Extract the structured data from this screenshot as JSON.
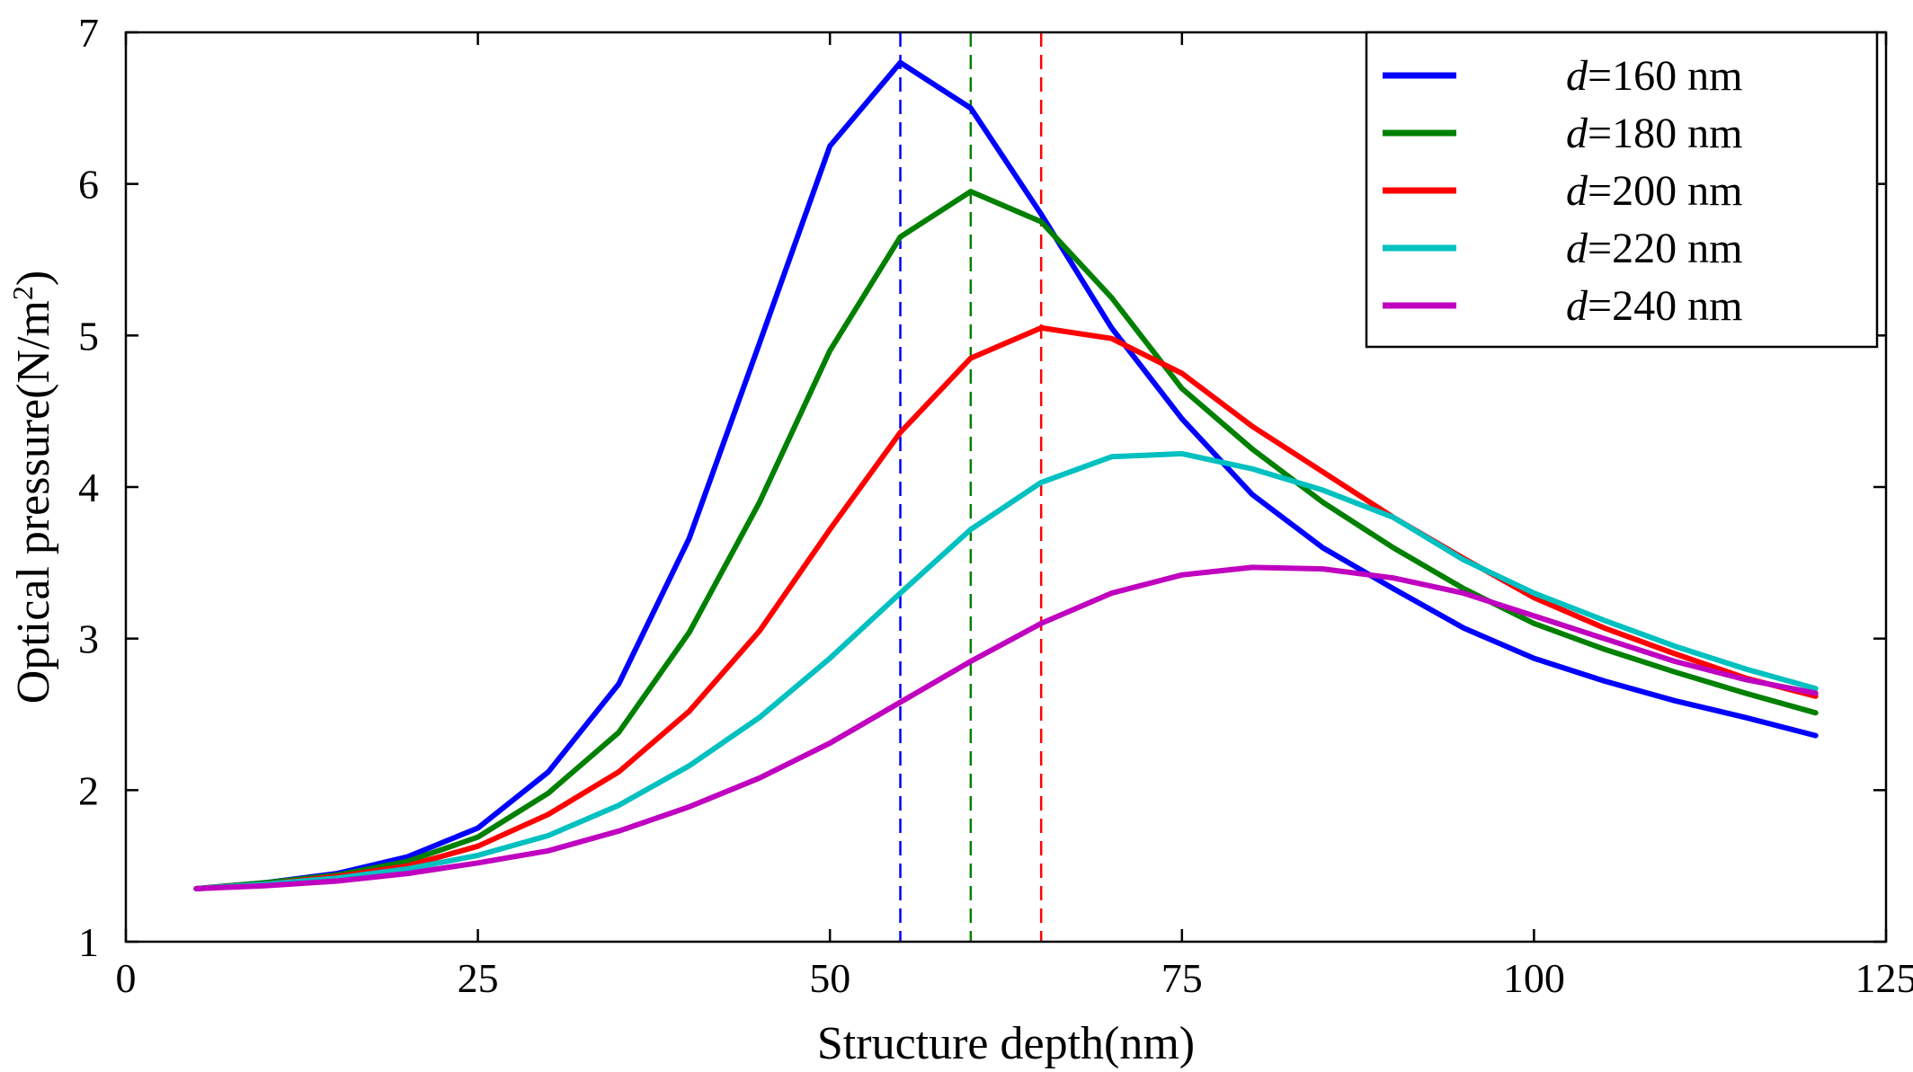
{
  "chart_data": {
    "type": "line",
    "xlabel": "Structure depth(nm)",
    "ylabel_main": "Optical pressure(N/m",
    "ylabel_sup": "2",
    "ylabel_close": ")",
    "xlim": [
      0,
      125
    ],
    "ylim": [
      1,
      7
    ],
    "xticks": [
      "0",
      "25",
      "50",
      "75",
      "100",
      "125"
    ],
    "yticks": [
      "1",
      "2",
      "3",
      "4",
      "5",
      "6",
      "7"
    ],
    "grid": false,
    "legend_position": "top-right",
    "x": [
      5,
      10,
      15,
      20,
      25,
      30,
      35,
      40,
      45,
      50,
      55,
      60,
      65,
      70,
      75,
      80,
      85,
      90,
      95,
      100,
      105,
      110,
      115,
      120
    ],
    "series": [
      {
        "name_prefix": "d",
        "name_suffix": "=160 nm",
        "color": "#0000ff",
        "values": [
          1.35,
          1.39,
          1.45,
          1.56,
          1.75,
          2.12,
          2.7,
          3.66,
          4.95,
          6.25,
          6.8,
          6.5,
          5.8,
          5.05,
          4.45,
          3.95,
          3.6,
          3.33,
          3.07,
          2.87,
          2.72,
          2.59,
          2.48,
          2.36
        ]
      },
      {
        "name_prefix": "d",
        "name_suffix": "=180 nm",
        "color": "#008000",
        "values": [
          1.35,
          1.39,
          1.44,
          1.53,
          1.69,
          1.98,
          2.38,
          3.04,
          3.9,
          4.9,
          5.65,
          5.95,
          5.75,
          5.25,
          4.65,
          4.25,
          3.9,
          3.6,
          3.33,
          3.1,
          2.93,
          2.78,
          2.64,
          2.51
        ]
      },
      {
        "name_prefix": "d",
        "name_suffix": "=200 nm",
        "color": "#ff0000",
        "values": [
          1.35,
          1.38,
          1.43,
          1.5,
          1.63,
          1.84,
          2.12,
          2.52,
          3.05,
          3.72,
          4.36,
          4.85,
          5.05,
          4.98,
          4.75,
          4.4,
          4.1,
          3.8,
          3.53,
          3.27,
          3.07,
          2.9,
          2.74,
          2.62
        ]
      },
      {
        "name_prefix": "d",
        "name_suffix": "=220 nm",
        "color": "#00c0c0",
        "values": [
          1.35,
          1.38,
          1.42,
          1.48,
          1.57,
          1.7,
          1.9,
          2.16,
          2.48,
          2.87,
          3.3,
          3.72,
          4.03,
          4.2,
          4.22,
          4.12,
          3.98,
          3.8,
          3.52,
          3.3,
          3.12,
          2.95,
          2.8,
          2.67
        ]
      },
      {
        "name_prefix": "d",
        "name_suffix": "=240 nm",
        "color": "#c000c0",
        "values": [
          1.35,
          1.37,
          1.4,
          1.45,
          1.52,
          1.6,
          1.73,
          1.89,
          2.08,
          2.31,
          2.58,
          2.85,
          3.1,
          3.3,
          3.42,
          3.47,
          3.46,
          3.4,
          3.3,
          3.15,
          3.0,
          2.85,
          2.73,
          2.64
        ]
      }
    ],
    "reference_lines": [
      {
        "x": 55,
        "color": "#0000ff"
      },
      {
        "x": 60,
        "color": "#008000"
      },
      {
        "x": 65,
        "color": "#ff0000"
      }
    ]
  }
}
